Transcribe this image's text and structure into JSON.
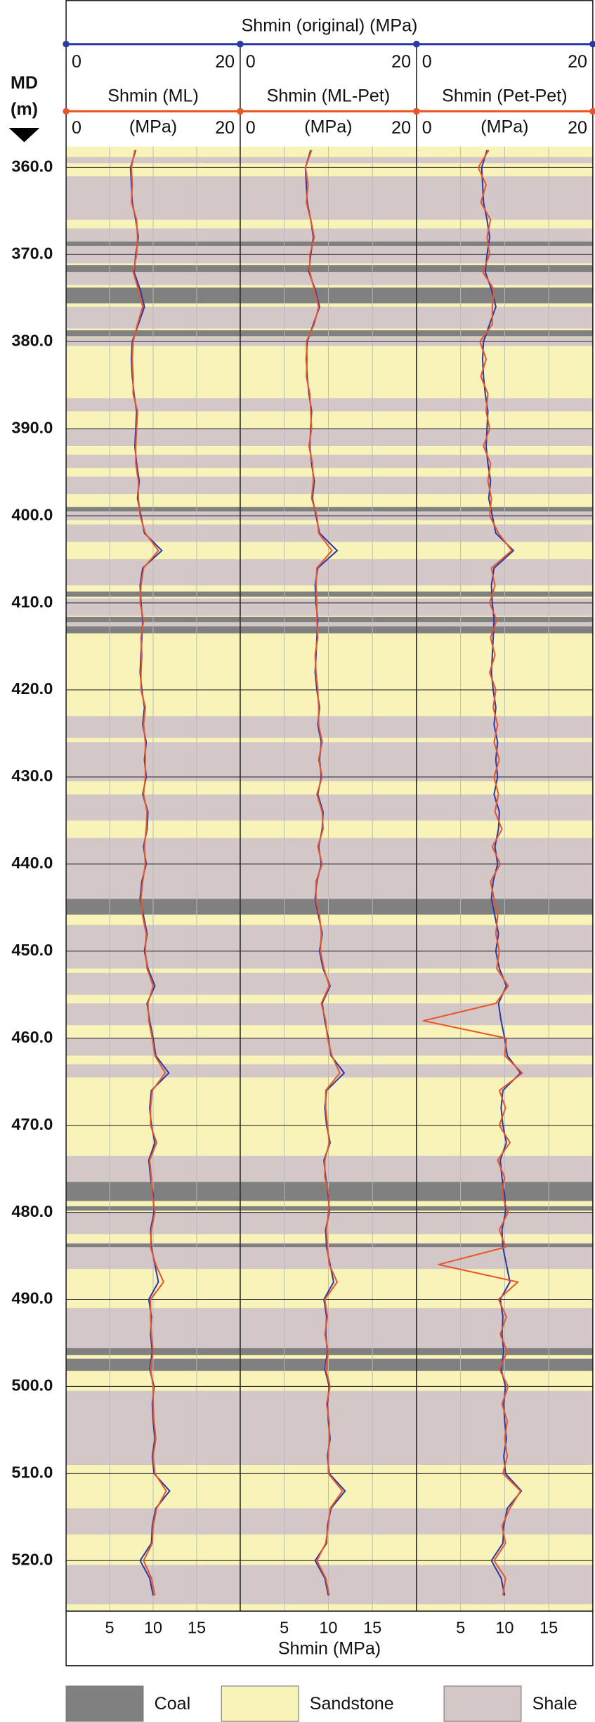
{
  "chart_data": {
    "type": "well-log",
    "top_axis_title": "Shmin (original) (MPa)",
    "y_label": "MD",
    "y_unit": "(m)",
    "x_label": "Shmin (MPa)",
    "ylim": [
      357.6,
      525.8
    ],
    "yticks": [
      {
        "value": 360,
        "label": "360.0"
      },
      {
        "value": 370,
        "label": "370.0"
      },
      {
        "value": 380,
        "label": "380.0"
      },
      {
        "value": 390,
        "label": "390.0"
      },
      {
        "value": 400,
        "label": "400.0"
      },
      {
        "value": 410,
        "label": "410.0"
      },
      {
        "value": 420,
        "label": "420.0"
      },
      {
        "value": 430,
        "label": "430.0"
      },
      {
        "value": 440,
        "label": "440.0"
      },
      {
        "value": 450,
        "label": "450.0"
      },
      {
        "value": 460,
        "label": "460.0"
      },
      {
        "value": 470,
        "label": "470.0"
      },
      {
        "value": 480,
        "label": "480.0"
      },
      {
        "value": 490,
        "label": "490.0"
      },
      {
        "value": 500,
        "label": "500.0"
      },
      {
        "value": 510,
        "label": "510.0"
      },
      {
        "value": 520,
        "label": "520.0"
      }
    ],
    "xlim": [
      0,
      20
    ],
    "top_xticks": [
      0,
      20
    ],
    "xticks": [
      5,
      10,
      15
    ],
    "grid": true,
    "depth": [
      358,
      360,
      362,
      364,
      366,
      368,
      370,
      372,
      374,
      376,
      378,
      380,
      382,
      384,
      386,
      388,
      390,
      392,
      394,
      396,
      398,
      400,
      402,
      404,
      406,
      408,
      410,
      412,
      414,
      416,
      418,
      420,
      422,
      424,
      426,
      428,
      430,
      432,
      434,
      436,
      438,
      440,
      442,
      444,
      446,
      448,
      450,
      452,
      454,
      456,
      458,
      460,
      462,
      464,
      466,
      468,
      470,
      472,
      474,
      476,
      478,
      480,
      482,
      484,
      486,
      488,
      490,
      492,
      494,
      496,
      498,
      500,
      502,
      504,
      506,
      508,
      510,
      512,
      514,
      516,
      518,
      520,
      522,
      524
    ],
    "original": {
      "color": "#2b3aa6",
      "values": [
        8.0,
        7.4,
        7.5,
        7.6,
        8.0,
        8.3,
        8.0,
        7.8,
        8.5,
        9.0,
        8.3,
        7.6,
        7.5,
        7.6,
        7.8,
        8.1,
        8.0,
        7.9,
        8.1,
        8.4,
        8.2,
        8.6,
        9.0,
        11.0,
        8.8,
        8.5,
        8.6,
        8.8,
        8.7,
        8.6,
        8.5,
        8.7,
        9.0,
        8.8,
        9.2,
        9.0,
        9.2,
        8.8,
        9.4,
        9.3,
        8.9,
        9.2,
        8.7,
        8.5,
        8.9,
        9.3,
        9.0,
        9.4,
        10.2,
        9.3,
        9.6,
        10.0,
        10.3,
        11.8,
        9.8,
        9.6,
        9.8,
        10.2,
        9.5,
        9.7,
        10.0,
        10.1,
        9.7,
        9.8,
        10.2,
        10.6,
        9.5,
        9.8,
        9.7,
        9.9,
        9.6,
        10.1,
        9.9,
        10.0,
        10.2,
        9.9,
        10.1,
        11.9,
        10.3,
        9.9,
        9.8,
        8.5,
        9.6,
        10.0
      ]
    },
    "tracks": [
      {
        "title": "Shmin (ML)",
        "unit": "(MPa)",
        "color": "#e8572a",
        "values": [
          7.9,
          7.5,
          7.6,
          7.5,
          8.1,
          8.2,
          8.1,
          7.7,
          8.3,
          8.8,
          8.2,
          7.7,
          7.6,
          7.7,
          7.7,
          8.2,
          8.1,
          8.0,
          8.0,
          8.3,
          8.3,
          8.5,
          9.1,
          10.6,
          8.9,
          8.6,
          8.5,
          8.9,
          8.6,
          8.7,
          8.6,
          8.6,
          9.1,
          8.9,
          9.1,
          9.1,
          9.1,
          8.9,
          9.3,
          9.2,
          9.0,
          9.1,
          8.8,
          8.6,
          8.8,
          9.2,
          9.1,
          9.3,
          10.0,
          9.4,
          9.5,
          9.9,
          10.2,
          11.4,
          9.9,
          9.7,
          9.7,
          10.4,
          9.6,
          9.8,
          9.9,
          10.2,
          9.8,
          9.7,
          10.3,
          11.2,
          9.7,
          9.7,
          9.8,
          10.0,
          9.7,
          10.0,
          10.0,
          10.1,
          10.3,
          10.0,
          10.2,
          11.5,
          10.4,
          10.0,
          9.9,
          8.9,
          9.8,
          10.2
        ]
      },
      {
        "title": "Shmin (ML-Pet)",
        "unit": "(MPa)",
        "color": "#e8572a",
        "values": [
          8.1,
          7.4,
          7.7,
          7.5,
          8.0,
          8.4,
          7.9,
          7.9,
          8.4,
          8.9,
          8.4,
          7.5,
          7.6,
          7.5,
          7.9,
          8.0,
          8.1,
          7.8,
          8.2,
          8.3,
          8.1,
          8.7,
          8.9,
          10.4,
          8.7,
          8.6,
          8.7,
          8.7,
          8.8,
          8.5,
          8.6,
          8.8,
          8.9,
          8.9,
          9.3,
          8.9,
          9.3,
          8.7,
          9.3,
          9.4,
          8.8,
          9.3,
          8.6,
          8.6,
          9.0,
          9.2,
          9.1,
          9.5,
          10.1,
          9.2,
          9.7,
          9.9,
          10.4,
          11.3,
          9.7,
          9.7,
          9.9,
          10.1,
          9.6,
          9.6,
          10.1,
          10.0,
          9.8,
          9.9,
          10.1,
          11.0,
          9.6,
          9.9,
          9.6,
          10.0,
          9.7,
          10.2,
          9.8,
          10.1,
          10.1,
          10.0,
          10.0,
          11.6,
          10.2,
          10.0,
          9.7,
          8.7,
          9.7,
          10.1
        ]
      },
      {
        "title": "Shmin (Pet-Pet)",
        "unit": "(MPa)",
        "color": "#e8572a",
        "values": [
          8.2,
          7.0,
          7.9,
          7.3,
          8.4,
          8.0,
          8.3,
          7.5,
          8.8,
          8.6,
          8.6,
          7.2,
          7.9,
          7.3,
          8.1,
          7.9,
          8.3,
          7.6,
          8.4,
          8.1,
          8.5,
          8.3,
          9.3,
          10.8,
          8.5,
          8.9,
          8.3,
          9.1,
          8.4,
          8.9,
          8.3,
          9.0,
          8.7,
          9.2,
          8.8,
          9.4,
          8.8,
          9.3,
          8.9,
          9.7,
          8.6,
          9.5,
          8.4,
          8.8,
          9.2,
          9.0,
          9.4,
          9.1,
          10.4,
          9.0,
          0.8,
          10.2,
          10.0,
          12.0,
          9.4,
          10.1,
          9.4,
          10.6,
          9.2,
          10.0,
          9.7,
          10.4,
          9.4,
          10.1,
          2.5,
          11.5,
          9.3,
          10.2,
          9.5,
          10.3,
          9.4,
          10.4,
          9.7,
          10.3,
          10.0,
          10.3,
          9.8,
          11.8,
          10.6,
          9.7,
          10.1,
          8.8,
          10.1,
          9.8
        ]
      }
    ],
    "legend": [
      {
        "name": "Coal",
        "color": "#808080"
      },
      {
        "name": "Sandstone",
        "color": "#f8f3b8"
      },
      {
        "name": "Shale",
        "color": "#d3c7c7"
      }
    ],
    "beds": {
      "top": [
        358.8,
        361.0,
        367.0,
        372.0,
        376.0,
        379.5,
        386.5,
        390.0,
        393.0,
        395.5,
        399.5,
        401.0,
        405.0,
        409.5,
        412.0,
        423.0,
        426.0,
        432.0,
        437.0,
        447.0,
        452.5,
        456.0,
        460.0,
        463.0,
        473.5,
        480.0,
        483.5,
        491.0,
        500.5,
        514.0,
        520.5,
        368.5,
        371.2,
        373.8,
        378.7,
        399.0,
        408.7,
        411.6,
        412.7,
        444.0,
        476.5,
        479.3,
        483.6,
        495.6,
        496.8
      ],
      "bottom": [
        359.5,
        366.0,
        371.0,
        373.5,
        378.5,
        380.5,
        388.0,
        392.0,
        394.5,
        397.5,
        400.5,
        403.0,
        408.0,
        411.5,
        413.5,
        425.5,
        430.5,
        435.0,
        445.0,
        452.0,
        455.0,
        458.5,
        462.0,
        464.5,
        476.5,
        482.5,
        486.5,
        496.0,
        509.0,
        517.0,
        525.0,
        369.0,
        372.0,
        375.6,
        379.4,
        399.5,
        409.3,
        412.2,
        413.5,
        445.8,
        478.7,
        479.8,
        484.0,
        496.4,
        498.2
      ],
      "lithology": [
        "Shale",
        "Shale",
        "Shale",
        "Shale",
        "Shale",
        "Shale",
        "Shale",
        "Shale",
        "Shale",
        "Shale",
        "Shale",
        "Shale",
        "Shale",
        "Shale",
        "Shale",
        "Shale",
        "Shale",
        "Shale",
        "Shale",
        "Shale",
        "Shale",
        "Shale",
        "Shale",
        "Shale",
        "Shale",
        "Shale",
        "Shale",
        "Shale",
        "Shale",
        "Shale",
        "Shale",
        "Coal",
        "Coal",
        "Coal",
        "Coal",
        "Coal",
        "Coal",
        "Coal",
        "Coal",
        "Coal",
        "Coal",
        "Coal",
        "Coal",
        "Coal",
        "Coal"
      ]
    }
  }
}
